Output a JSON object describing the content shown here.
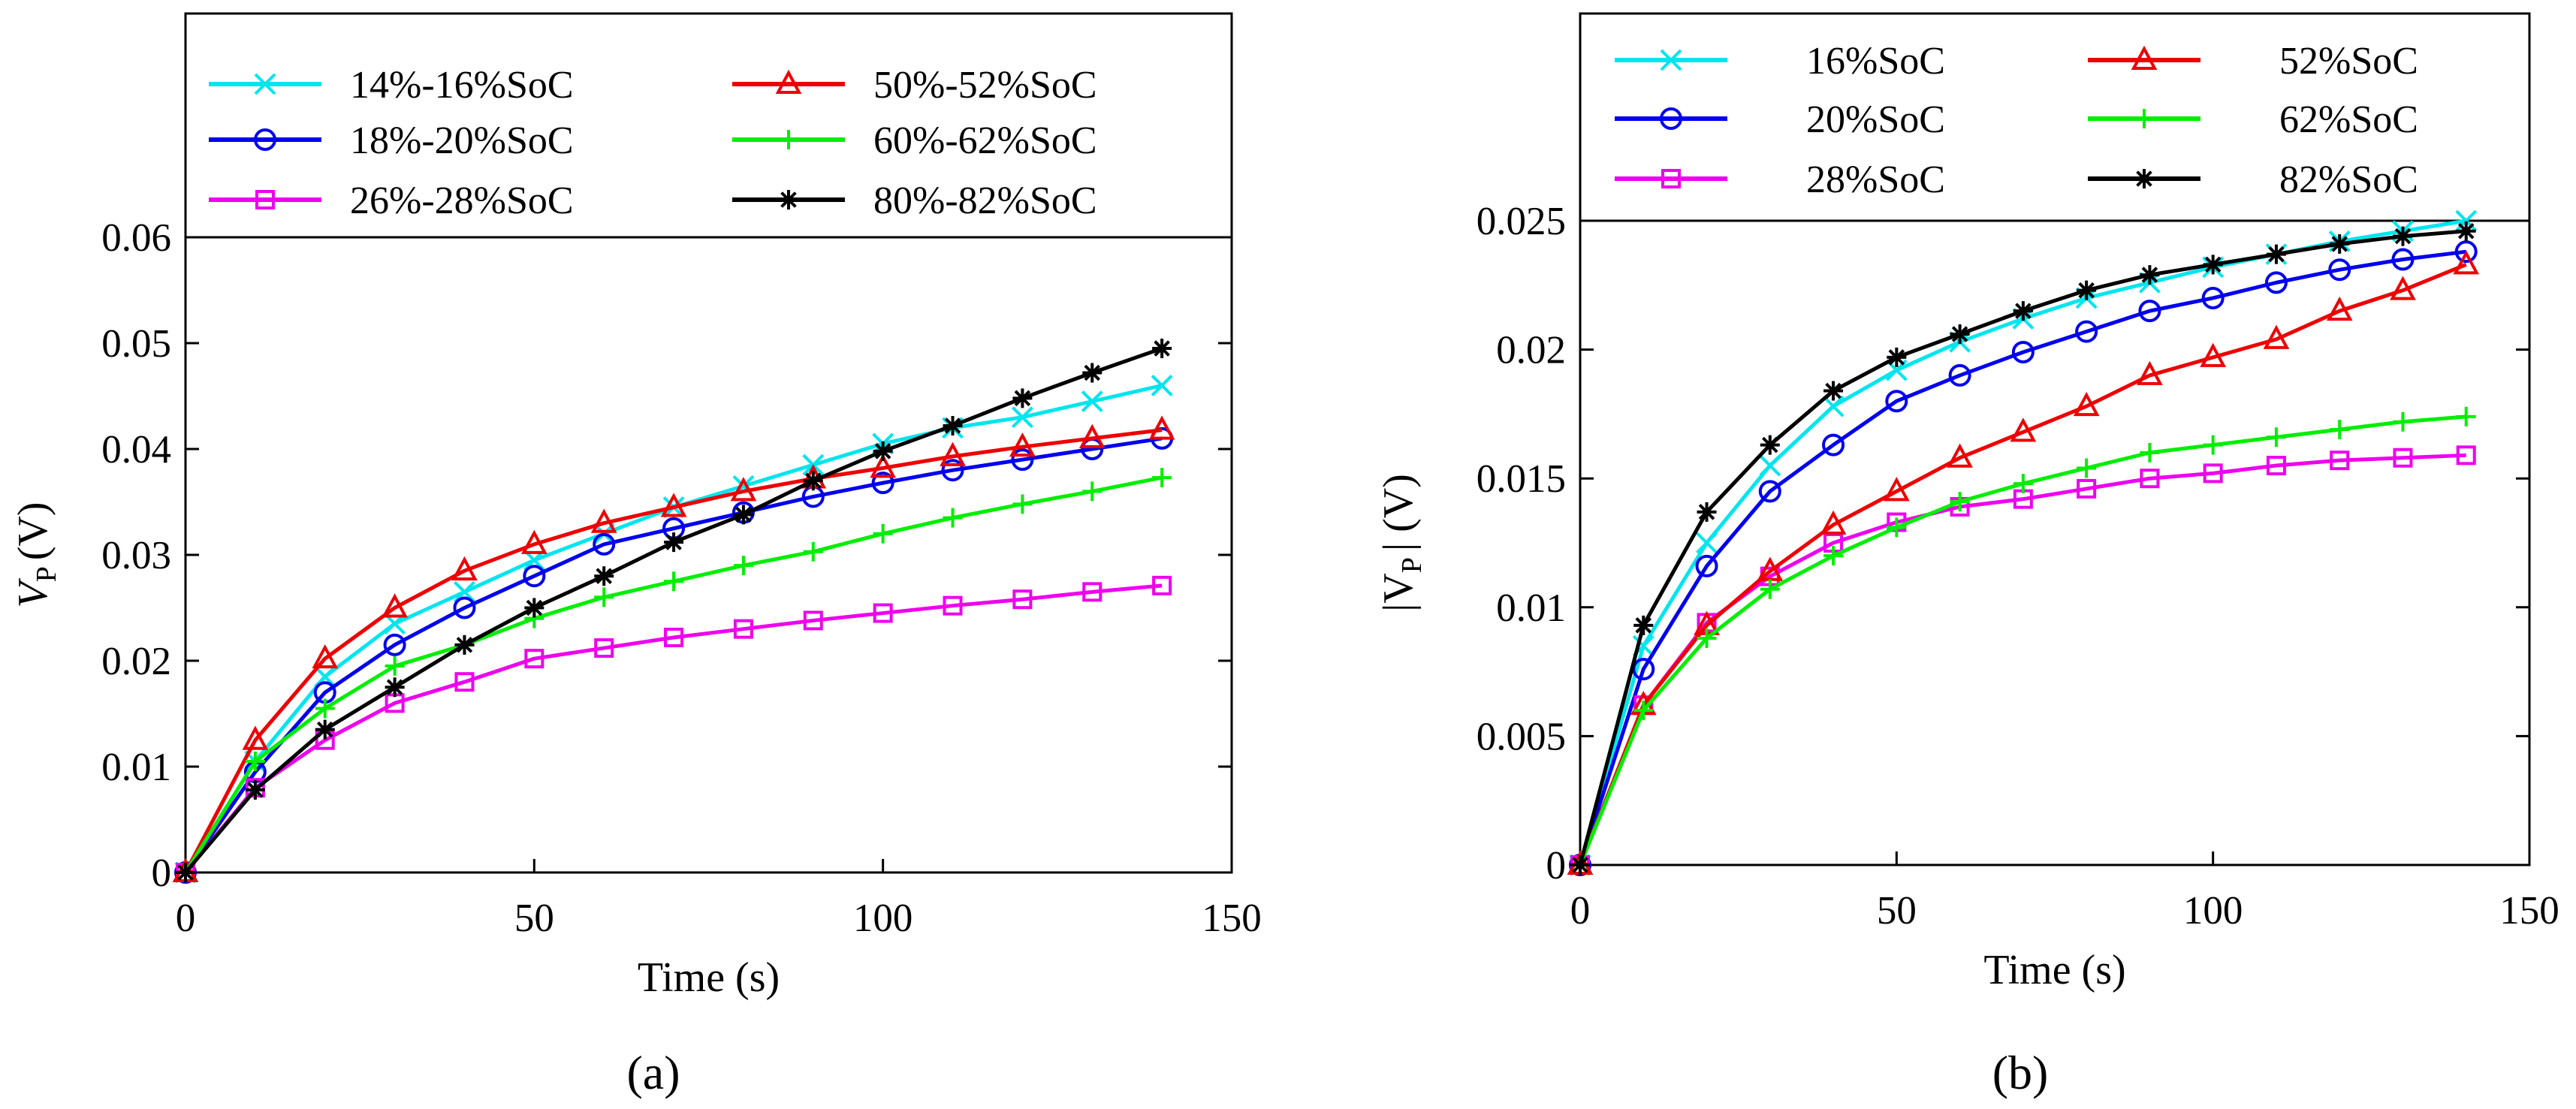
{
  "chart_data": [
    {
      "type": "line",
      "panel_label": "(a)",
      "xlabel": "Time (s)",
      "ylabel_main": "V",
      "ylabel_sub": "P",
      "ylabel_unit": "(V)",
      "xlim": [
        0,
        150
      ],
      "ylim": [
        0,
        0.06
      ],
      "xticks": [
        "0",
        "50",
        "100",
        "150"
      ],
      "yticks": [
        "0",
        "0.01",
        "0.02",
        "0.03",
        "0.04",
        "0.05",
        "0.06"
      ],
      "grid": false,
      "legend_position": "top (above plot, 2 columns)",
      "x": [
        0,
        10,
        20,
        30,
        40,
        50,
        60,
        70,
        80,
        90,
        100,
        110,
        120,
        130,
        140
      ],
      "series": [
        {
          "name": "14%-16%SoC",
          "color": "#00e5ee",
          "marker": "x",
          "values": [
            0,
            0.0105,
            0.0185,
            0.0235,
            0.0265,
            0.0295,
            0.032,
            0.0345,
            0.0365,
            0.0385,
            0.0405,
            0.042,
            0.043,
            0.0445,
            0.046
          ]
        },
        {
          "name": "18%-20%SoC",
          "color": "#0000ee",
          "marker": "o",
          "values": [
            0,
            0.0095,
            0.017,
            0.0215,
            0.025,
            0.028,
            0.031,
            0.0325,
            0.034,
            0.0355,
            0.0368,
            0.038,
            0.039,
            0.04,
            0.041
          ]
        },
        {
          "name": "26%-28%SoC",
          "color": "#ee00ee",
          "marker": "s",
          "values": [
            0,
            0.008,
            0.0125,
            0.016,
            0.018,
            0.0202,
            0.0212,
            0.0222,
            0.023,
            0.0238,
            0.0245,
            0.0252,
            0.0258,
            0.0265,
            0.0271
          ]
        },
        {
          "name": "50%-52%SoC",
          "color": "#ee0000",
          "marker": "^",
          "values": [
            0,
            0.0125,
            0.0202,
            0.025,
            0.0285,
            0.031,
            0.033,
            0.0345,
            0.036,
            0.0372,
            0.0382,
            0.0393,
            0.0402,
            0.041,
            0.0418
          ]
        },
        {
          "name": "60%-62%SoC",
          "color": "#00ee00",
          "marker": "+",
          "values": [
            0,
            0.0105,
            0.0155,
            0.0195,
            0.0215,
            0.024,
            0.026,
            0.0275,
            0.029,
            0.0303,
            0.032,
            0.0335,
            0.0348,
            0.036,
            0.0373
          ]
        },
        {
          "name": "80%-82%SoC",
          "color": "#000000",
          "marker": "*",
          "values": [
            0,
            0.0078,
            0.0135,
            0.0175,
            0.0215,
            0.025,
            0.028,
            0.0312,
            0.0338,
            0.037,
            0.0398,
            0.0422,
            0.0448,
            0.0472,
            0.0495
          ]
        }
      ]
    },
    {
      "type": "line",
      "panel_label": "(b)",
      "xlabel": "Time (s)",
      "ylabel_main": "|V",
      "ylabel_sub": "P",
      "ylabel_unit": "| (V)",
      "xlim": [
        0,
        150
      ],
      "ylim": [
        0,
        0.025
      ],
      "xticks": [
        "0",
        "50",
        "100",
        "150"
      ],
      "yticks": [
        "0",
        "0.005",
        "0.01",
        "0.015",
        "0.02",
        "0.025"
      ],
      "grid": false,
      "legend_position": "top (above plot, 2 columns)",
      "x": [
        0,
        10,
        20,
        30,
        40,
        50,
        60,
        70,
        80,
        90,
        100,
        110,
        120,
        130,
        140
      ],
      "series": [
        {
          "name": "16%SoC",
          "color": "#00e5ee",
          "marker": "x",
          "values": [
            0,
            0.0085,
            0.0125,
            0.0155,
            0.0178,
            0.0192,
            0.0203,
            0.0212,
            0.022,
            0.0226,
            0.0232,
            0.0237,
            0.0242,
            0.0246,
            0.025
          ]
        },
        {
          "name": "20%SoC",
          "color": "#0000ee",
          "marker": "o",
          "values": [
            0,
            0.0076,
            0.0116,
            0.0145,
            0.0163,
            0.018,
            0.019,
            0.0199,
            0.0207,
            0.0215,
            0.022,
            0.0226,
            0.0231,
            0.0235,
            0.0238
          ]
        },
        {
          "name": "28%SoC",
          "color": "#ee00ee",
          "marker": "s",
          "values": [
            0,
            0.0062,
            0.0094,
            0.0112,
            0.0125,
            0.0133,
            0.0139,
            0.0142,
            0.0146,
            0.015,
            0.0152,
            0.0155,
            0.0157,
            0.0158,
            0.0159
          ]
        },
        {
          "name": "52%SoC",
          "color": "#ee0000",
          "marker": "^",
          "values": [
            0,
            0.0062,
            0.0093,
            0.0114,
            0.0132,
            0.0145,
            0.0158,
            0.0168,
            0.0178,
            0.019,
            0.0197,
            0.0204,
            0.0215,
            0.0223,
            0.0233
          ]
        },
        {
          "name": "62%SoC",
          "color": "#00ee00",
          "marker": "+",
          "values": [
            0,
            0.006,
            0.0088,
            0.0107,
            0.012,
            0.0131,
            0.0141,
            0.0148,
            0.0154,
            0.016,
            0.0163,
            0.0166,
            0.0169,
            0.0172,
            0.0174
          ]
        },
        {
          "name": "82%SoC",
          "color": "#000000",
          "marker": "*",
          "values": [
            0,
            0.0093,
            0.0137,
            0.0163,
            0.0184,
            0.0197,
            0.0206,
            0.0215,
            0.0223,
            0.0229,
            0.0233,
            0.0237,
            0.0241,
            0.0244,
            0.0246
          ]
        }
      ]
    }
  ]
}
